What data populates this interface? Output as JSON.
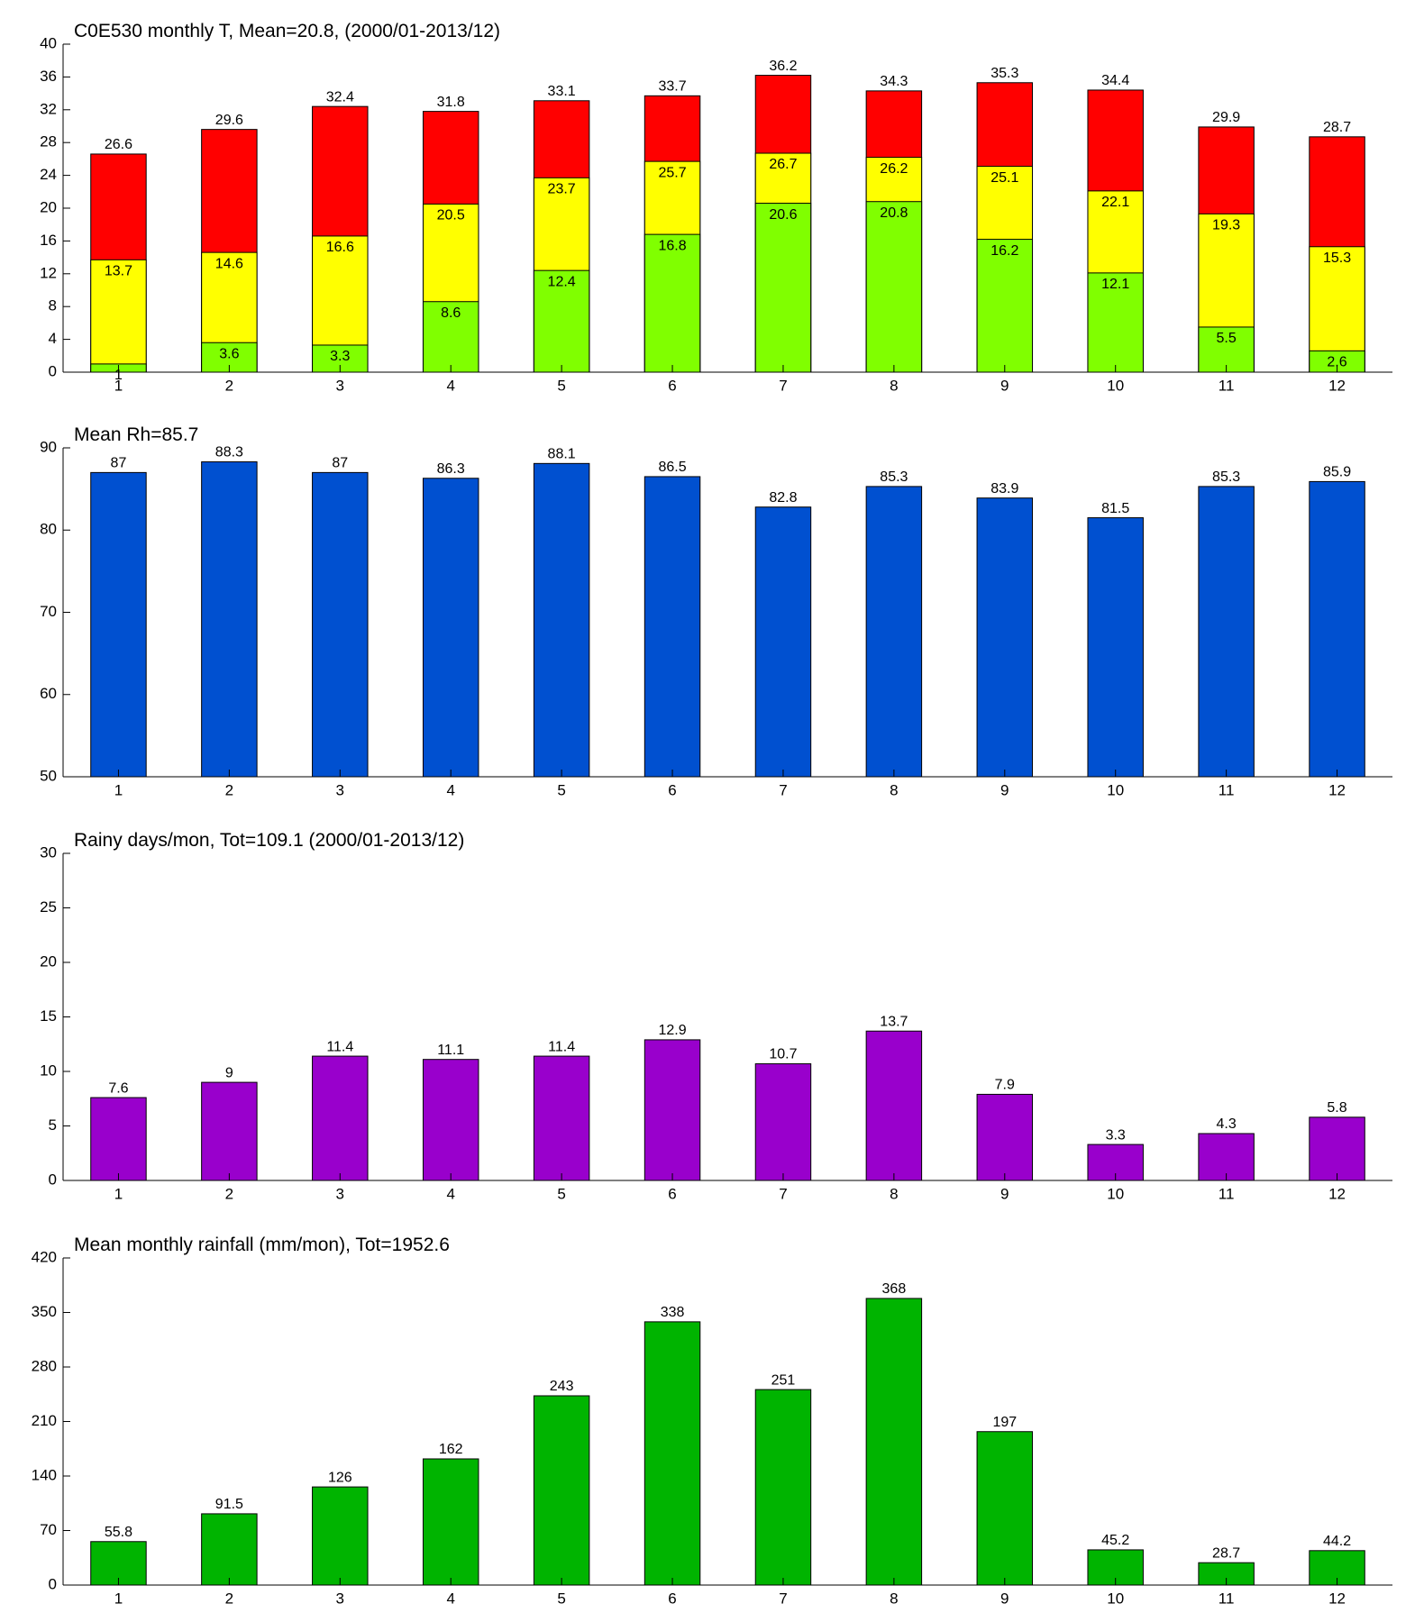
{
  "chart_data": [
    {
      "type": "bar",
      "barmode": "overlay",
      "title": "C0E530 monthly T, Mean=20.8, (2000/01-2013/12)",
      "categories": [
        "1",
        "2",
        "3",
        "4",
        "5",
        "6",
        "7",
        "8",
        "9",
        "10",
        "11",
        "12"
      ],
      "series": [
        {
          "color": "#ff0000",
          "values": [
            26.6,
            29.6,
            32.4,
            31.8,
            33.1,
            33.7,
            36.2,
            34.3,
            35.3,
            34.4,
            29.9,
            28.7
          ]
        },
        {
          "color": "#ffff00",
          "values": [
            13.7,
            14.6,
            16.6,
            20.5,
            23.7,
            25.7,
            26.7,
            26.2,
            25.1,
            22.1,
            19.3,
            15.3
          ]
        },
        {
          "color": "#80ff00",
          "values": [
            1,
            3.6,
            3.3,
            8.6,
            12.4,
            16.8,
            20.6,
            20.8,
            16.2,
            12.1,
            5.5,
            2.6
          ]
        }
      ],
      "ylim": [
        0,
        40
      ],
      "yticks": [
        0,
        4,
        8,
        12,
        16,
        20,
        24,
        28,
        32,
        36,
        40
      ],
      "grid": false
    },
    {
      "type": "bar",
      "title": "Mean Rh=85.7",
      "categories": [
        "1",
        "2",
        "3",
        "4",
        "5",
        "6",
        "7",
        "8",
        "9",
        "10",
        "11",
        "12"
      ],
      "values": [
        87,
        88.3,
        87,
        86.3,
        88.1,
        86.5,
        82.8,
        85.3,
        83.9,
        81.5,
        85.3,
        85.9
      ],
      "color": "#0050d0",
      "ylim": [
        50,
        90
      ],
      "yticks": [
        50,
        60,
        70,
        80,
        90
      ],
      "grid": false
    },
    {
      "type": "bar",
      "title": "Rainy days/mon, Tot=109.1 (2000/01-2013/12)",
      "categories": [
        "1",
        "2",
        "3",
        "4",
        "5",
        "6",
        "7",
        "8",
        "9",
        "10",
        "11",
        "12"
      ],
      "values": [
        7.6,
        9,
        11.4,
        11.1,
        11.4,
        12.9,
        10.7,
        13.7,
        7.9,
        3.3,
        4.3,
        5.8
      ],
      "color": "#9900cc",
      "ylim": [
        0,
        30
      ],
      "yticks": [
        0,
        5,
        10,
        15,
        20,
        25,
        30
      ],
      "grid": false
    },
    {
      "type": "bar",
      "title": "Mean monthly rainfall (mm/mon), Tot=1952.6",
      "categories": [
        "1",
        "2",
        "3",
        "4",
        "5",
        "6",
        "7",
        "8",
        "9",
        "10",
        "11",
        "12"
      ],
      "values": [
        55.8,
        91.5,
        126,
        162,
        243,
        338,
        251,
        368,
        197,
        45.2,
        28.7,
        44.2
      ],
      "color": "#00b400",
      "ylim": [
        0,
        420
      ],
      "yticks": [
        0,
        70,
        140,
        210,
        280,
        350,
        420
      ],
      "grid": false
    }
  ]
}
